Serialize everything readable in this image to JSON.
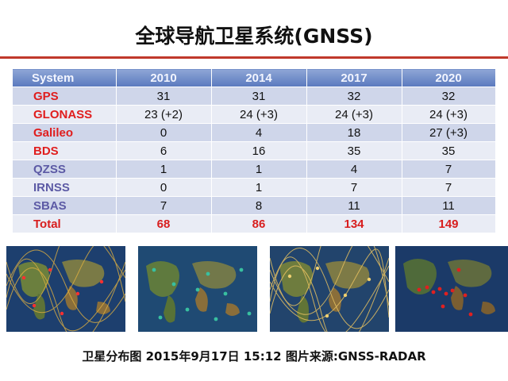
{
  "title": "全球导航卫星系统(GNSS)",
  "colors": {
    "title_rule": "#c0392b",
    "header_bg": "#6b86c6",
    "row_odd": "#cfd6ea",
    "row_even": "#e9ecf5",
    "red_label": "#e01d1d",
    "purple_label": "#5c5aa5"
  },
  "table": {
    "headers": [
      "System",
      "2010",
      "2014",
      "2017",
      "2020"
    ],
    "rows": [
      {
        "system": "GPS",
        "v2010": "31",
        "v2014": "31",
        "v2017": "32",
        "v2020": "32",
        "label_color": "red"
      },
      {
        "system": "GLONASS",
        "v2010": "23 (+2)",
        "v2014": "24 (+3)",
        "v2017": "24 (+3)",
        "v2020": "24 (+3)",
        "label_color": "red"
      },
      {
        "system": "Galileo",
        "v2010": "0",
        "v2014": "4",
        "v2017": "18",
        "v2020": "27 (+3)",
        "label_color": "red"
      },
      {
        "system": "BDS",
        "v2010": "6",
        "v2014": "16",
        "v2017": "35",
        "v2020": "35",
        "label_color": "red"
      },
      {
        "system": "QZSS",
        "v2010": "1",
        "v2014": "1",
        "v2017": "4",
        "v2020": "7",
        "label_color": "purple"
      },
      {
        "system": "IRNSS",
        "v2010": "0",
        "v2014": "1",
        "v2017": "7",
        "v2020": "7",
        "label_color": "purple"
      },
      {
        "system": "SBAS",
        "v2010": "7",
        "v2014": "8",
        "v2017": "11",
        "v2020": "11",
        "label_color": "purple"
      }
    ],
    "total": {
      "system": "Total",
      "v2010": "68",
      "v2014": "86",
      "v2017": "134",
      "v2020": "149"
    }
  },
  "maps": [
    {
      "name": "satellite-ground-track-map-1",
      "track_color": "#e0b040"
    },
    {
      "name": "satellite-position-map-2",
      "track_color": "#38c0a0"
    },
    {
      "name": "satellite-ground-track-map-3",
      "track_color": "#e6c060"
    },
    {
      "name": "satellite-position-map-4",
      "track_color": "#e02020"
    }
  ],
  "caption": "卫星分布图 2015年9月17日 15:12   图片来源:GNSS-RADAR"
}
